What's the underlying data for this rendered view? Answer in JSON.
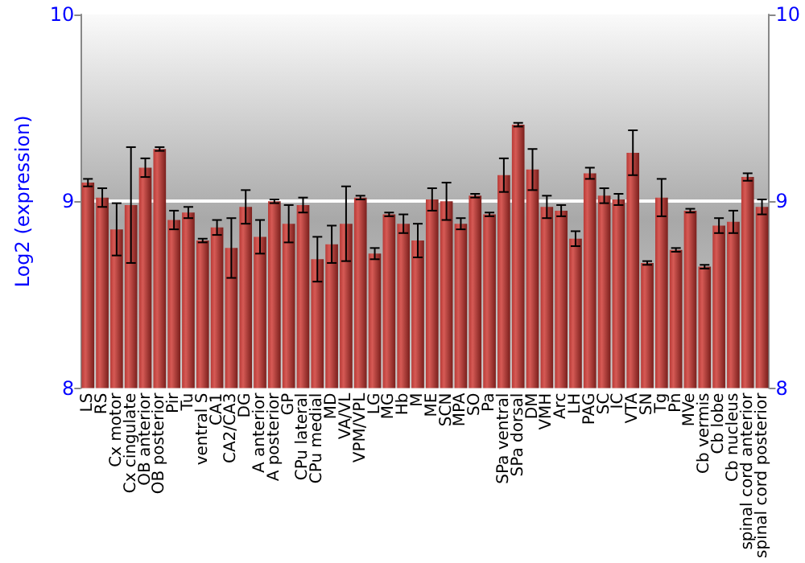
{
  "chart_data": {
    "type": "bar",
    "ylabel": "Log2 (expression)",
    "categories": [
      "LS",
      "RS",
      "Cx motor",
      "Cx cingulate",
      "OB anterior",
      "OB posterior",
      "Pir",
      "Tu",
      "ventral S",
      "CA1",
      "CA2/CA3",
      "DG",
      "A anterior",
      "A posterior",
      "GP",
      "CPu lateral",
      "CPu medial",
      "MD",
      "VA/VL",
      "VPM/VPL",
      "LG",
      "MG",
      "Hb",
      "M",
      "ME",
      "SCN",
      "MPA",
      "SO",
      "Pa",
      "SPa ventral",
      "SPa dorsal",
      "DM",
      "VMH",
      "Arc",
      "LH",
      "PAG",
      "SC",
      "IC",
      "VTA",
      "SN",
      "Tg",
      "Pn",
      "MVe",
      "Cb vermis",
      "Cb lobe",
      "Cb nucleus",
      "spinal cord anterior",
      "spinal cord posterior"
    ],
    "series": [
      {
        "color": "#b83a36",
        "values": [
          9.1,
          9.02,
          8.85,
          8.98,
          9.18,
          9.28,
          8.9,
          8.94,
          8.79,
          8.86,
          8.75,
          8.97,
          8.81,
          9.0,
          8.88,
          8.98,
          8.69,
          8.77,
          8.88,
          9.02,
          8.72,
          8.93,
          8.88,
          8.79,
          9.01,
          9.0,
          8.88,
          9.03,
          8.93,
          9.14,
          9.41,
          9.17,
          8.97,
          8.95,
          8.8,
          9.15,
          9.03,
          9.01,
          9.26,
          8.67,
          9.02,
          8.74,
          8.95,
          8.65,
          8.87,
          8.89,
          9.13,
          8.97
        ],
        "errors": [
          0.02,
          0.05,
          0.14,
          0.31,
          0.05,
          0.01,
          0.05,
          0.03,
          0.01,
          0.04,
          0.16,
          0.09,
          0.09,
          0.01,
          0.1,
          0.04,
          0.12,
          0.1,
          0.2,
          0.01,
          0.03,
          0.01,
          0.05,
          0.09,
          0.06,
          0.1,
          0.03,
          0.01,
          0.01,
          0.09,
          0.01,
          0.11,
          0.06,
          0.03,
          0.04,
          0.03,
          0.04,
          0.03,
          0.12,
          0.01,
          0.1,
          0.01,
          0.01,
          0.01,
          0.04,
          0.06,
          0.02,
          0.04
        ]
      }
    ],
    "ylim": [
      8,
      10
    ],
    "yticks": [
      8,
      9,
      10
    ],
    "y2lim": [
      8,
      10
    ],
    "y2ticks": [
      8,
      9,
      10
    ],
    "grid": "y"
  }
}
